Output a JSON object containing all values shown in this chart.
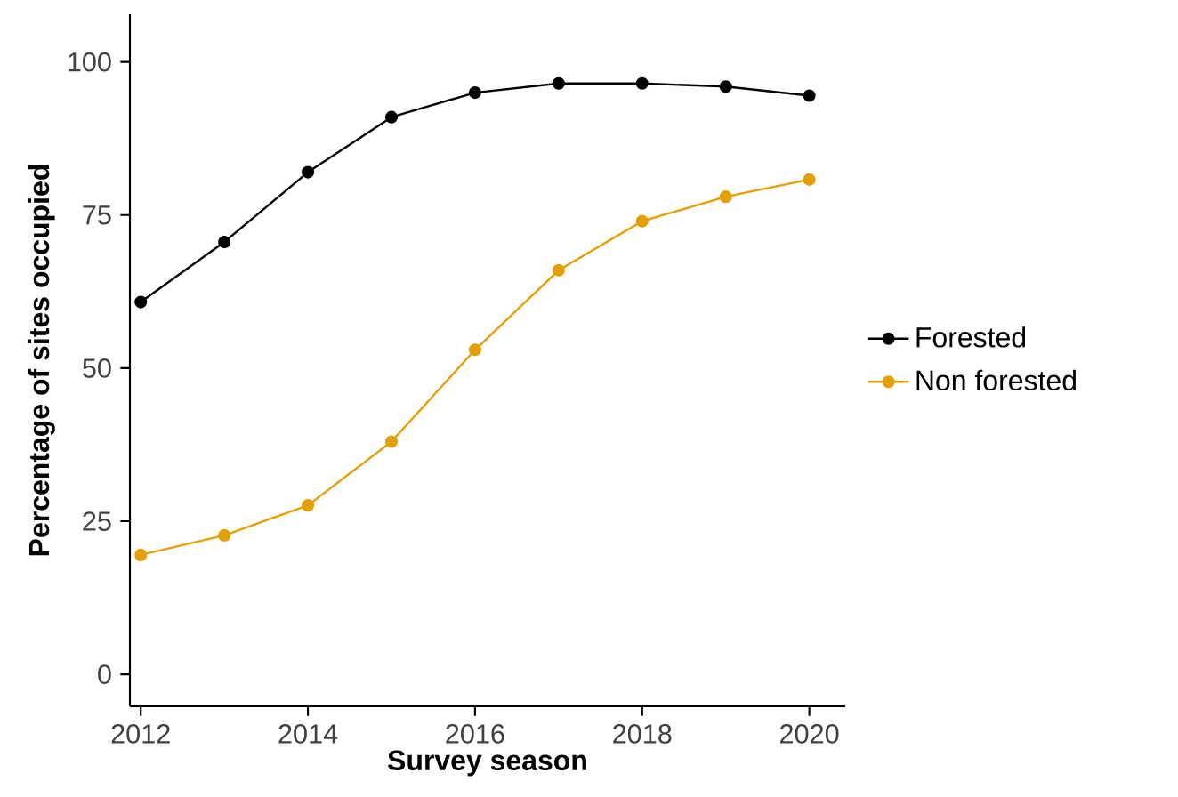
{
  "chart_data": {
    "type": "line",
    "xlabel": "Survey season",
    "ylabel": "Percentage of sites occupied",
    "x": [
      2012,
      2013,
      2014,
      2015,
      2016,
      2017,
      2018,
      2019,
      2020
    ],
    "series": [
      {
        "name": "Forested",
        "color": "#000000",
        "values": [
          60.8,
          70.6,
          82,
          91,
          95,
          96.5,
          96.5,
          96,
          94.5
        ]
      },
      {
        "name": "Non forested",
        "color": "#e69f00",
        "values": [
          19.5,
          22.7,
          27.6,
          38,
          53,
          66,
          74,
          78,
          80.8
        ]
      }
    ],
    "xlim": [
      2011.87,
      2020.43
    ],
    "ylim": [
      -5.2,
      107.8
    ],
    "xticks": [
      2012,
      2014,
      2016,
      2018,
      2020
    ],
    "yticks": [
      0,
      25,
      50,
      75,
      100
    ],
    "grid": false,
    "legend": "right",
    "marker": "circle",
    "line_style": "solid"
  }
}
